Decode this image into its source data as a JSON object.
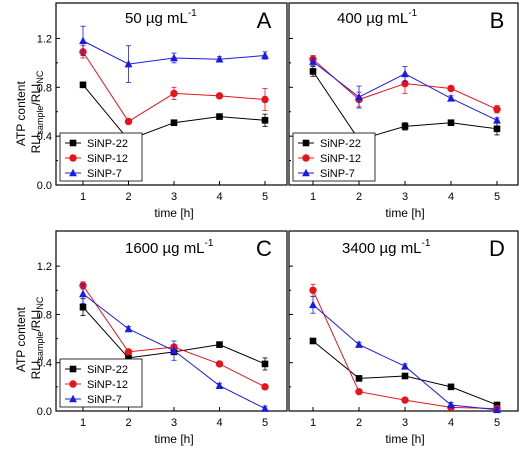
{
  "y_axis_label": {
    "line1": "ATP content",
    "rli": "RLI",
    "sample": "sample",
    "slash": "/RLI",
    "nc": "NC"
  },
  "chart_data": [
    {
      "type": "line",
      "panel": "A",
      "concentration_label": "50 µg mL",
      "concentration_sup": "-1",
      "xlabel": "time [h]",
      "x": [
        1,
        2,
        3,
        4,
        5
      ],
      "xticks": [
        "1",
        "2",
        "3",
        "4",
        "5"
      ],
      "ylim": [
        0,
        1.4
      ],
      "yticks": [
        "0.0",
        "0.4",
        "0.8",
        "1.2"
      ],
      "show_yticklabels": true,
      "legend_placement": "bottom-left",
      "series": [
        {
          "name": "SiNP-22",
          "color": "#000000",
          "marker": "square",
          "values": [
            0.82,
            0.37,
            0.51,
            0.56,
            0.53
          ],
          "errors": [
            0.02,
            0.02,
            0.02,
            0.02,
            0.05
          ]
        },
        {
          "name": "SiNP-12",
          "color": "#e8141b",
          "marker": "circle",
          "values": [
            1.09,
            0.52,
            0.75,
            0.73,
            0.7
          ],
          "errors": [
            0.05,
            0.02,
            0.05,
            0.02,
            0.09
          ]
        },
        {
          "name": "SiNP-7",
          "color": "#1a1ae6",
          "marker": "triangle",
          "values": [
            1.18,
            0.99,
            1.04,
            1.03,
            1.06
          ],
          "errors": [
            0.12,
            0.15,
            0.04,
            0.02,
            0.03
          ]
        }
      ]
    },
    {
      "type": "line",
      "panel": "B",
      "concentration_label": "400 µg mL",
      "concentration_sup": "-1",
      "xlabel": "time [h]",
      "x": [
        1,
        2,
        3,
        4,
        5
      ],
      "xticks": [
        "1",
        "2",
        "3",
        "4",
        "5"
      ],
      "ylim": [
        0,
        1.4
      ],
      "yticks": [
        "0.0",
        "0.4",
        "0.8",
        "1.2"
      ],
      "show_yticklabels": false,
      "legend_placement": "bottom-left",
      "series": [
        {
          "name": "SiNP-22",
          "color": "#000000",
          "marker": "square",
          "values": [
            0.93,
            0.37,
            0.48,
            0.51,
            0.46
          ],
          "errors": [
            0.04,
            0.02,
            0.03,
            0.02,
            0.05
          ]
        },
        {
          "name": "SiNP-12",
          "color": "#e8141b",
          "marker": "circle",
          "values": [
            1.03,
            0.7,
            0.83,
            0.79,
            0.62
          ],
          "errors": [
            0.03,
            0.06,
            0.08,
            0.02,
            0.03
          ]
        },
        {
          "name": "SiNP-7",
          "color": "#1a1ae6",
          "marker": "triangle",
          "values": [
            1.01,
            0.72,
            0.91,
            0.71,
            0.53
          ],
          "errors": [
            0.03,
            0.09,
            0.06,
            0.02,
            0.02
          ]
        }
      ]
    },
    {
      "type": "line",
      "panel": "C",
      "concentration_label": "1600 µg mL",
      "concentration_sup": "-1",
      "xlabel": "time [h]",
      "x": [
        1,
        2,
        3,
        4,
        5
      ],
      "xticks": [
        "1",
        "2",
        "3",
        "4",
        "5"
      ],
      "ylim": [
        0,
        1.4
      ],
      "yticks": [
        "0.0",
        "0.4",
        "0.8",
        "1.2"
      ],
      "show_yticklabels": true,
      "legend_placement": "bottom-left",
      "series": [
        {
          "name": "SiNP-22",
          "color": "#000000",
          "marker": "square",
          "values": [
            0.86,
            0.44,
            0.49,
            0.55,
            0.39
          ],
          "errors": [
            0.07,
            0.02,
            0.02,
            0.02,
            0.05
          ]
        },
        {
          "name": "SiNP-12",
          "color": "#e8141b",
          "marker": "circle",
          "values": [
            1.04,
            0.49,
            0.53,
            0.39,
            0.2
          ],
          "errors": [
            0.03,
            0.02,
            0.02,
            0.02,
            0.02
          ]
        },
        {
          "name": "SiNP-7",
          "color": "#1a1ae6",
          "marker": "triangle",
          "values": [
            0.97,
            0.68,
            0.5,
            0.21,
            0.02
          ],
          "errors": [
            0.08,
            0.02,
            0.08,
            0.02,
            0.02
          ]
        }
      ]
    },
    {
      "type": "line",
      "panel": "D",
      "concentration_label": "3400 µg mL",
      "concentration_sup": "-1",
      "xlabel": "time [h]",
      "x": [
        1,
        2,
        3,
        4,
        5
      ],
      "xticks": [
        "1",
        "2",
        "3",
        "4",
        "5"
      ],
      "ylim": [
        0,
        1.4
      ],
      "yticks": [
        "0.0",
        "0.4",
        "0.8",
        "1.2"
      ],
      "show_yticklabels": false,
      "legend_placement": "none",
      "series": [
        {
          "name": "SiNP-22",
          "color": "#000000",
          "marker": "square",
          "values": [
            0.58,
            0.27,
            0.29,
            0.2,
            0.05
          ],
          "errors": [
            0.02,
            0.02,
            0.02,
            0.02,
            0.02
          ]
        },
        {
          "name": "SiNP-12",
          "color": "#e8141b",
          "marker": "circle",
          "values": [
            1.0,
            0.16,
            0.09,
            0.03,
            0.02
          ],
          "errors": [
            0.05,
            0.02,
            0.02,
            0.02,
            0.02
          ]
        },
        {
          "name": "SiNP-7",
          "color": "#1a1ae6",
          "marker": "triangle",
          "values": [
            0.88,
            0.55,
            0.37,
            0.05,
            0.01
          ],
          "errors": [
            0.07,
            0.02,
            0.02,
            0.02,
            0.02
          ]
        }
      ]
    }
  ]
}
